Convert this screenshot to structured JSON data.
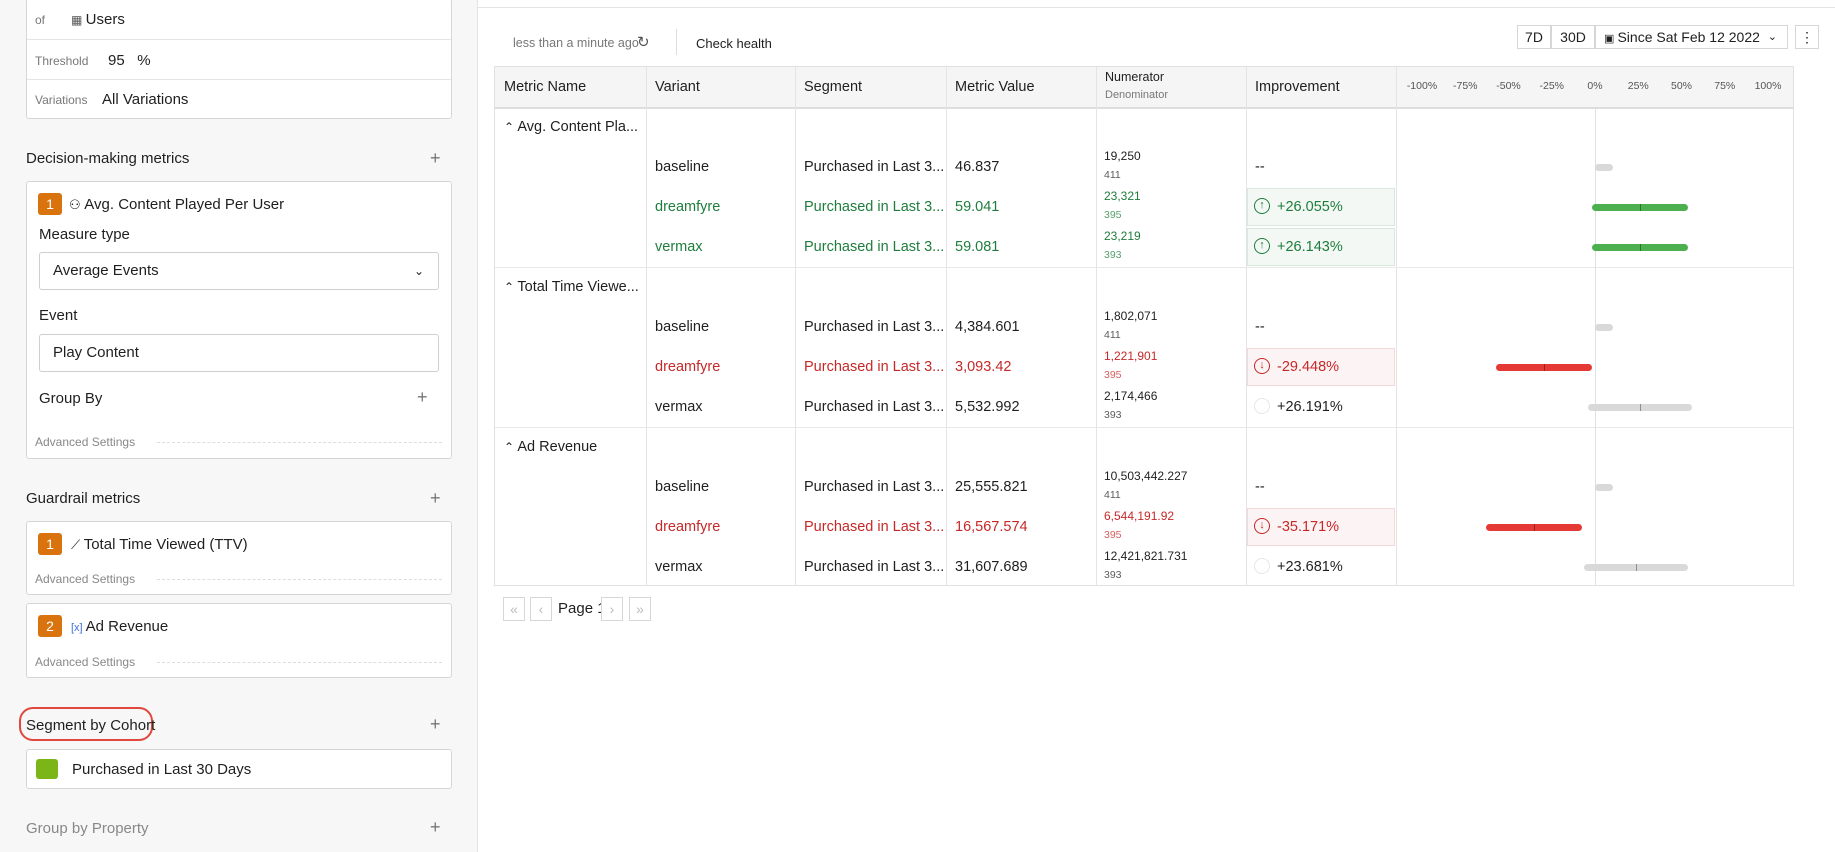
{
  "sidebar": {
    "of_label": "of",
    "users": "Users",
    "threshold_label": "Threshold",
    "threshold": "95",
    "threshold_unit": "%",
    "variations_label": "Variations",
    "variations": "All Variations",
    "decision": {
      "title": "Decision-making metrics",
      "index": "1",
      "metric": "Avg. Content Played Per User",
      "measure_label": "Measure type",
      "measure": "Average Events",
      "event_label": "Event",
      "event": "Play Content",
      "group_by": "Group By",
      "advanced": "Advanced Settings"
    },
    "guardrail": {
      "title": "Guardrail metrics",
      "metrics": [
        {
          "index": "1",
          "name": "Total Time Viewed (TTV)",
          "advanced": "Advanced Settings"
        },
        {
          "index": "2",
          "name": "Ad Revenue",
          "advanced": "Advanced Settings"
        }
      ]
    },
    "segment": {
      "title": "Segment by Cohort",
      "cohort": "Purchased in Last 30 Days"
    },
    "group_by_property": "Group by Property"
  },
  "toolbar": {
    "updated": "less than a minute ago",
    "check_health": "Check health",
    "ranges": [
      "7D",
      "30D"
    ],
    "since": "Since Sat Feb 12 2022"
  },
  "table": {
    "columns": [
      "Metric Name",
      "Variant",
      "Segment",
      "Metric Value"
    ],
    "numerator": "Numerator",
    "denominator": "Denominator",
    "improvement": "Improvement",
    "axis": [
      {
        "value": -100,
        "label": "-100%"
      },
      {
        "value": -75,
        "label": "-75%"
      },
      {
        "value": -50,
        "label": "-50%"
      },
      {
        "value": -25,
        "label": "-25%"
      },
      {
        "value": 0,
        "label": "0%"
      },
      {
        "value": 25,
        "label": "25%"
      },
      {
        "value": 50,
        "label": "50%"
      },
      {
        "value": 75,
        "label": "75%"
      },
      {
        "value": 100,
        "label": "100%"
      }
    ],
    "groups": [
      {
        "name": "Avg. Content Pla...",
        "rows": [
          {
            "variant": "baseline",
            "segment": "Purchased in Last 3...",
            "value": "46.837",
            "numerator": "19,250",
            "denominator": "411",
            "improvement": "--",
            "color": "#1f1f1f"
          },
          {
            "variant": "dreamfyre",
            "segment": "Purchased in Last 3...",
            "value": "59.041",
            "numerator": "23,321",
            "denominator": "395",
            "improvement": "+26.055%",
            "color": "#1e7d3c"
          },
          {
            "variant": "vermax",
            "segment": "Purchased in Last 3...",
            "value": "59.081",
            "numerator": "23,219",
            "denominator": "393",
            "improvement": "+26.143%",
            "color": "#1e7d3c"
          }
        ]
      },
      {
        "name": "Total Time Viewe...",
        "rows": [
          {
            "variant": "baseline",
            "segment": "Purchased in Last 3...",
            "value": "4,384.601",
            "numerator": "1,802,071",
            "denominator": "411",
            "improvement": "--",
            "color": "#1f1f1f"
          },
          {
            "variant": "dreamfyre",
            "segment": "Purchased in Last 3...",
            "value": "3,093.42",
            "numerator": "1,221,901",
            "denominator": "395",
            "improvement": "-29.448%",
            "color": "#c62828"
          },
          {
            "variant": "vermax",
            "segment": "Purchased in Last 3...",
            "value": "5,532.992",
            "numerator": "2,174,466",
            "denominator": "393",
            "improvement": "+26.191%",
            "color": "#1f1f1f"
          }
        ]
      },
      {
        "name": "Ad Revenue",
        "rows": [
          {
            "variant": "baseline",
            "segment": "Purchased in Last 3...",
            "value": "25,555.821",
            "numerator": "10,503,442.227",
            "denominator": "411",
            "improvement": "--",
            "color": "#1f1f1f"
          },
          {
            "variant": "dreamfyre",
            "segment": "Purchased in Last 3...",
            "value": "16,567.574",
            "numerator": "6,544,191.92",
            "denominator": "395",
            "improvement": "-35.171%",
            "color": "#c62828"
          },
          {
            "variant": "vermax",
            "segment": "Purchased in Last 3...",
            "value": "31,607.689",
            "numerator": "12,421,821.731",
            "denominator": "393",
            "improvement": "+23.681%",
            "color": "#1f1f1f"
          }
        ]
      }
    ]
  },
  "pagination": {
    "page": "Page 1"
  }
}
